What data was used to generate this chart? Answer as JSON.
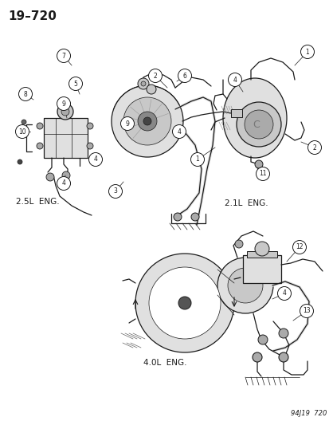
{
  "title": "19–720",
  "footer": "94J19  720",
  "bg_color": "#ffffff",
  "line_color": "#1a1a1a",
  "text_color": "#1a1a1a",
  "label_25L": "2.5L  ENG.",
  "label_21L": "2.1L  ENG.",
  "label_40L": "4.0L  ENG.",
  "title_fontsize": 11,
  "label_fontsize": 7.5,
  "footer_fontsize": 6,
  "circle_fontsize": 5.5,
  "lw": 0.9,
  "thin_lw": 0.5,
  "gray_fill": "#c8c8c8",
  "dark_gray": "#888888",
  "light_gray": "#e0e0e0",
  "mid_gray": "#aaaaaa"
}
